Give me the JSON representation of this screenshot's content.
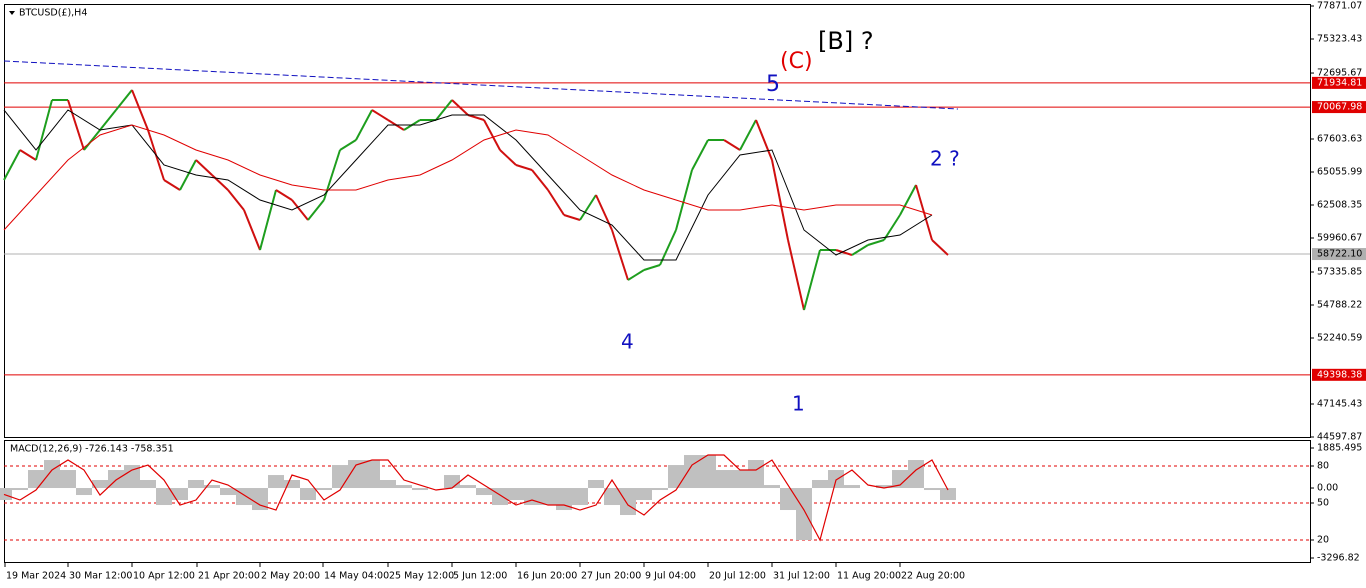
{
  "chart_data": {
    "type": "line",
    "title": "BTCUSD(£),H4",
    "ylim": [
      44597.87,
      78025
    ],
    "yticks": [
      77871.07,
      75323.43,
      72695.67,
      67603.63,
      65055.99,
      62508.35,
      59960.67,
      57335.85,
      54788.22,
      52240.59,
      47145.43,
      44597.87
    ],
    "xlim": [
      0,
      1306
    ],
    "xticks": [
      {
        "value": 1,
        "label": "19 Mar 2024"
      },
      {
        "value": 64,
        "label": "30 Mar 12:00"
      },
      {
        "value": 128,
        "label": "10 Apr 12:00"
      },
      {
        "value": 193,
        "label": "21 Apr 20:00"
      },
      {
        "value": 256,
        "label": "2 May 20:00"
      },
      {
        "value": 319,
        "label": "14 May 04:00"
      },
      {
        "value": 384,
        "label": "25 May 12:00"
      },
      {
        "value": 448,
        "label": "5 Jun 12:00"
      },
      {
        "value": 512,
        "label": "16 Jun 20:00"
      },
      {
        "value": 576,
        "label": "27 Jun 20:00"
      },
      {
        "value": 640,
        "label": "9 Jul 04:00"
      },
      {
        "value": 704,
        "label": "20 Jul 12:00"
      },
      {
        "value": 768,
        "label": "31 Jul 12:00"
      },
      {
        "value": 832,
        "label": "11 Aug 20:00"
      },
      {
        "value": 896,
        "label": "22 Aug 20:00"
      }
    ],
    "up_color": "#1e9e1e",
    "down_color": "#d01010",
    "series": [
      {
        "color": "#1e9e1e",
        "x": [
          0,
          16,
          32,
          48,
          64,
          80,
          96,
          112,
          128,
          144,
          160,
          176,
          192,
          208,
          224,
          240,
          256,
          272,
          288,
          304,
          320,
          336,
          352,
          368,
          384,
          400,
          416,
          432,
          448,
          464,
          480,
          496,
          512,
          528,
          544,
          560,
          576,
          592,
          608,
          624,
          640,
          656,
          672,
          688,
          704,
          720,
          736,
          752,
          768,
          784,
          800,
          816,
          832,
          848,
          864,
          880,
          896,
          912,
          928,
          944
        ],
        "values": [
          64438,
          66754,
          65982,
          70614,
          70614,
          66754,
          68298,
          69842,
          71386,
          68298,
          64438,
          63666,
          65982,
          64824,
          63666,
          62122,
          59034,
          63666,
          62894,
          61350,
          62894,
          66754,
          67526,
          69842,
          69070,
          68298,
          69070,
          69070,
          70614,
          69456,
          69070,
          66754,
          65596,
          65210,
          63666,
          61736,
          61350,
          63280,
          60578,
          56718,
          57490,
          57876,
          60578,
          65210,
          67526,
          67526,
          66754,
          69070,
          65982,
          59806,
          54402,
          59034,
          59034,
          58648,
          59420,
          59806,
          61736,
          64053,
          59806,
          58648
        ]
      },
      {
        "color": "#000000",
        "x": [
          0,
          32,
          64,
          96,
          128,
          160,
          192,
          224,
          256,
          288,
          320,
          352,
          384,
          416,
          448,
          480,
          512,
          544,
          576,
          608,
          640,
          672,
          704,
          736,
          768,
          800,
          832,
          864,
          896,
          928
        ],
        "values": [
          69842,
          66754,
          69842,
          68298,
          68684,
          65596,
          64824,
          64438,
          62894,
          62122,
          63280,
          65982,
          68684,
          68684,
          69456,
          69456,
          67526,
          64824,
          62122,
          60964,
          58262,
          58262,
          63280,
          66368,
          66754,
          60578,
          58648,
          59806,
          60192,
          61736
        ]
      },
      {
        "color": "#e00000",
        "x": [
          0,
          32,
          64,
          96,
          128,
          160,
          192,
          224,
          256,
          288,
          320,
          352,
          384,
          416,
          448,
          480,
          512,
          544,
          576,
          608,
          640,
          672,
          704,
          736,
          768,
          800,
          832,
          864,
          896,
          928
        ],
        "values": [
          60578,
          63280,
          65982,
          67912,
          68684,
          67912,
          66754,
          65982,
          64824,
          64053,
          63666,
          63666,
          64438,
          64824,
          65982,
          67526,
          68298,
          67912,
          66368,
          64824,
          63666,
          62894,
          62122,
          62122,
          62508,
          62122,
          62508,
          62508,
          62508,
          61736
        ]
      }
    ],
    "levels": [
      {
        "value": 71934.81,
        "color": "#e00000"
      },
      {
        "value": 70067.98,
        "color": "#e00000"
      },
      {
        "value": {
          "value": 58722.1,
          "label": "58722.10"
        },
        "color": "#b0b0b0"
      },
      {
        "value": 49398.38,
        "color": "#e00000"
      }
    ],
    "trendline": {
      "color": "#1010c0",
      "x": [
        0,
        954
      ],
      "values": [
        73625,
        69919
      ]
    },
    "annotations": [
      {
        "text": "[B] ?",
        "color": "#000000"
      },
      {
        "text": "(C)",
        "color": "#e00000"
      },
      {
        "text": "5",
        "color": "#1010c0"
      },
      {
        "text": "2 ?",
        "color": "#1010c0"
      },
      {
        "text": "4",
        "color": "#1010c0"
      },
      {
        "text": "1",
        "color": "#1010c0"
      }
    ],
    "indicator": {
      "title": "MACD(12,26,9) -726.143 -758.351",
      "ylim": [
        -3485,
        2262
      ],
      "yticks": [
        1885.495,
        {
          "value": 1037,
          "label": "80"
        },
        {
          "value": 0,
          "label": "0.00"
        },
        {
          "value": -706,
          "label": "50"
        },
        {
          "value": -2448,
          "label": "20"
        },
        -3296.82
      ],
      "levels": [
        1037,
        -706,
        -2448
      ],
      "histogram_color": "#c0c0c0",
      "signal_color": "#e00000",
      "histogram": [
        -565,
        -94,
        848,
        1319,
        848,
        -330,
        377,
        848,
        1083,
        377,
        -801,
        -565,
        377,
        141,
        -330,
        -801,
        -1036,
        612,
        377,
        -565,
        -94,
        1083,
        1319,
        1319,
        377,
        141,
        -94,
        0,
        612,
        141,
        -330,
        -801,
        -565,
        -801,
        -801,
        -1036,
        -801,
        377,
        -801,
        -1272,
        -565,
        -94,
        1083,
        1554,
        1554,
        848,
        848,
        1319,
        141,
        -1036,
        -2449,
        377,
        848,
        141,
        0,
        141,
        848,
        1319,
        -94,
        -565
      ],
      "signal": [
        -300,
        -565,
        -94,
        848,
        1319,
        848,
        -330,
        377,
        848,
        1083,
        377,
        -801,
        -565,
        377,
        141,
        -330,
        -801,
        -1036,
        612,
        377,
        -565,
        -94,
        1083,
        1319,
        1319,
        377,
        141,
        -94,
        0,
        612,
        141,
        -330,
        -801,
        -565,
        -801,
        -801,
        -1036,
        -801,
        377,
        -801,
        -1272,
        -565,
        -94,
        1083,
        1554,
        1554,
        848,
        848,
        1319,
        141,
        -1036,
        -2449,
        377,
        848,
        141,
        0,
        141,
        848,
        1319,
        -94
      ]
    }
  }
}
